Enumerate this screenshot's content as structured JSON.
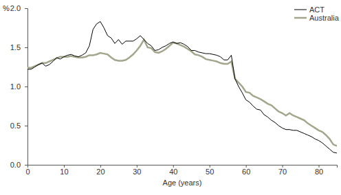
{
  "chart_data": {
    "type": "line",
    "y_label": "%",
    "x_label": "Age (years)",
    "x": [
      0,
      1,
      2,
      3,
      4,
      5,
      6,
      7,
      8,
      9,
      10,
      11,
      12,
      13,
      14,
      15,
      16,
      17,
      18,
      19,
      20,
      21,
      22,
      23,
      24,
      25,
      26,
      27,
      28,
      29,
      30,
      31,
      32,
      33,
      34,
      35,
      36,
      37,
      38,
      39,
      40,
      41,
      42,
      43,
      44,
      45,
      46,
      47,
      48,
      49,
      50,
      51,
      52,
      53,
      54,
      55,
      56,
      57,
      58,
      59,
      60,
      61,
      62,
      63,
      64,
      65,
      66,
      67,
      68,
      69,
      70,
      71,
      72,
      73,
      74,
      75,
      76,
      77,
      78,
      79,
      80,
      81,
      82,
      83,
      84,
      85
    ],
    "series": [
      {
        "name": "ACT",
        "color": "#000000",
        "values": [
          1.22,
          1.22,
          1.25,
          1.28,
          1.3,
          1.26,
          1.28,
          1.32,
          1.37,
          1.35,
          1.38,
          1.4,
          1.41,
          1.39,
          1.38,
          1.4,
          1.43,
          1.52,
          1.73,
          1.8,
          1.83,
          1.75,
          1.65,
          1.62,
          1.55,
          1.6,
          1.54,
          1.58,
          1.58,
          1.58,
          1.61,
          1.65,
          1.6,
          1.55,
          1.52,
          1.46,
          1.47,
          1.5,
          1.52,
          1.55,
          1.57,
          1.55,
          1.56,
          1.54,
          1.51,
          1.46,
          1.46,
          1.44,
          1.43,
          1.42,
          1.42,
          1.41,
          1.4,
          1.38,
          1.34,
          1.34,
          1.4,
          1.1,
          1.0,
          0.92,
          0.83,
          0.8,
          0.75,
          0.71,
          0.7,
          0.64,
          0.61,
          0.57,
          0.54,
          0.5,
          0.47,
          0.45,
          0.45,
          0.44,
          0.44,
          0.42,
          0.4,
          0.38,
          0.36,
          0.33,
          0.31,
          0.28,
          0.24,
          0.2,
          0.16,
          0.15
        ]
      },
      {
        "name": "Australia",
        "color": "#a3a58c",
        "values": [
          1.24,
          1.24,
          1.26,
          1.28,
          1.3,
          1.3,
          1.32,
          1.34,
          1.36,
          1.38,
          1.38,
          1.38,
          1.39,
          1.38,
          1.37,
          1.37,
          1.38,
          1.4,
          1.4,
          1.41,
          1.43,
          1.42,
          1.41,
          1.37,
          1.34,
          1.33,
          1.33,
          1.34,
          1.37,
          1.41,
          1.46,
          1.52,
          1.6,
          1.5,
          1.49,
          1.44,
          1.43,
          1.45,
          1.48,
          1.52,
          1.56,
          1.55,
          1.53,
          1.51,
          1.48,
          1.45,
          1.41,
          1.4,
          1.38,
          1.35,
          1.34,
          1.33,
          1.32,
          1.3,
          1.29,
          1.29,
          1.32,
          1.1,
          1.05,
          1.0,
          0.93,
          0.92,
          0.88,
          0.86,
          0.84,
          0.81,
          0.78,
          0.76,
          0.72,
          0.68,
          0.66,
          0.63,
          0.66,
          0.63,
          0.61,
          0.59,
          0.57,
          0.53,
          0.5,
          0.47,
          0.44,
          0.42,
          0.38,
          0.33,
          0.26,
          0.24
        ]
      }
    ],
    "xlim": [
      0,
      85
    ],
    "xticks": [
      0,
      10,
      20,
      30,
      40,
      50,
      60,
      70,
      80
    ],
    "ylim": [
      0,
      2
    ],
    "yticks": [
      {
        "value": 0,
        "label": "0.0"
      },
      0.5,
      {
        "value": 1,
        "label": "1.0"
      },
      1.5,
      {
        "value": 2,
        "label": "2.0"
      }
    ],
    "grid": false,
    "legend": "upper-right"
  }
}
